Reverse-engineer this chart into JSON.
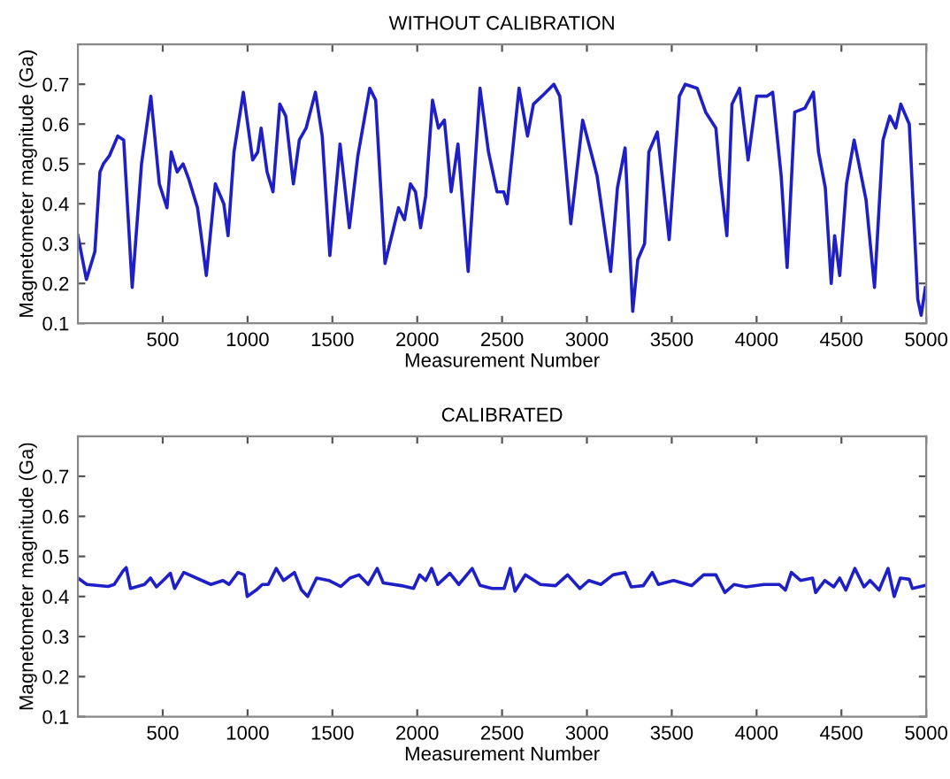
{
  "chart_data": [
    {
      "type": "line",
      "title": "WITHOUT CALIBRATION",
      "xlabel": "Measurement Number",
      "ylabel": "Magnetometer magnitude (Ga)",
      "xlim": [
        0,
        5000
      ],
      "ylim": [
        0.1,
        0.8
      ],
      "xticks": [
        500,
        1000,
        1500,
        2000,
        2500,
        3000,
        3500,
        4000,
        4500,
        5000
      ],
      "yticks": [
        0.1,
        0.2,
        0.3,
        0.4,
        0.5,
        0.6,
        0.7
      ],
      "grid": false,
      "marker": "none",
      "line_style": "solid",
      "series": [
        {
          "color": "#1f1fc8",
          "x": [
            0,
            50,
            100,
            130,
            150,
            185,
            235,
            270,
            320,
            375,
            430,
            480,
            525,
            550,
            585,
            620,
            655,
            705,
            757,
            810,
            860,
            885,
            920,
            975,
            1030,
            1060,
            1080,
            1115,
            1150,
            1190,
            1225,
            1270,
            1305,
            1345,
            1400,
            1440,
            1485,
            1545,
            1600,
            1650,
            1720,
            1755,
            1810,
            1890,
            1925,
            1960,
            1990,
            2020,
            2050,
            2090,
            2125,
            2160,
            2200,
            2240,
            2300,
            2370,
            2420,
            2470,
            2510,
            2530,
            2600,
            2650,
            2685,
            2735,
            2805,
            2840,
            2905,
            2975,
            3030,
            3060,
            3140,
            3180,
            3225,
            3270,
            3300,
            3340,
            3365,
            3415,
            3485,
            3545,
            3580,
            3650,
            3700,
            3760,
            3785,
            3825,
            3855,
            3900,
            3950,
            4000,
            4060,
            4095,
            4145,
            4180,
            4225,
            4285,
            4335,
            4365,
            4405,
            4440,
            4460,
            4490,
            4530,
            4575,
            4645,
            4695,
            4745,
            4785,
            4820,
            4850,
            4900,
            4950,
            4970,
            4995
          ],
          "values": [
            0.32,
            0.21,
            0.28,
            0.48,
            0.5,
            0.52,
            0.57,
            0.56,
            0.19,
            0.5,
            0.67,
            0.45,
            0.39,
            0.53,
            0.48,
            0.5,
            0.46,
            0.39,
            0.22,
            0.45,
            0.4,
            0.32,
            0.53,
            0.68,
            0.51,
            0.53,
            0.59,
            0.48,
            0.43,
            0.65,
            0.62,
            0.45,
            0.56,
            0.59,
            0.68,
            0.57,
            0.27,
            0.55,
            0.34,
            0.52,
            0.69,
            0.66,
            0.25,
            0.39,
            0.36,
            0.45,
            0.43,
            0.34,
            0.42,
            0.66,
            0.59,
            0.61,
            0.43,
            0.55,
            0.23,
            0.69,
            0.53,
            0.43,
            0.43,
            0.4,
            0.69,
            0.57,
            0.65,
            0.67,
            0.7,
            0.67,
            0.35,
            0.61,
            0.52,
            0.47,
            0.23,
            0.44,
            0.54,
            0.13,
            0.26,
            0.3,
            0.53,
            0.58,
            0.31,
            0.67,
            0.7,
            0.69,
            0.63,
            0.59,
            0.47,
            0.32,
            0.65,
            0.69,
            0.51,
            0.67,
            0.67,
            0.68,
            0.47,
            0.24,
            0.63,
            0.64,
            0.68,
            0.53,
            0.44,
            0.2,
            0.32,
            0.22,
            0.45,
            0.56,
            0.41,
            0.19,
            0.56,
            0.62,
            0.59,
            0.65,
            0.6,
            0.16,
            0.12,
            0.19
          ]
        }
      ]
    },
    {
      "type": "line",
      "title": "CALIBRATED",
      "xlabel": "Measurement Number",
      "ylabel": "Magnetometer magnitude (Ga)",
      "xlim": [
        0,
        5000
      ],
      "ylim": [
        0.1,
        0.8
      ],
      "xticks": [
        500,
        1000,
        1500,
        2000,
        2500,
        3000,
        3500,
        4000,
        4500,
        5000
      ],
      "yticks": [
        0.1,
        0.2,
        0.3,
        0.4,
        0.5,
        0.6,
        0.7
      ],
      "grid": false,
      "marker": "none",
      "line_style": "solid",
      "series": [
        {
          "color": "#1f1fc8",
          "x": [
            0,
            53,
            178,
            214,
            267,
            285,
            310,
            392,
            428,
            463,
            517,
            545,
            570,
            624,
            731,
            784,
            855,
            891,
            944,
            980,
            998,
            1051,
            1087,
            1122,
            1169,
            1212,
            1276,
            1318,
            1354,
            1407,
            1479,
            1550,
            1604,
            1657,
            1711,
            1764,
            1800,
            1907,
            1978,
            2014,
            2050,
            2085,
            2121,
            2192,
            2245,
            2324,
            2370,
            2441,
            2512,
            2548,
            2576,
            2637,
            2726,
            2815,
            2886,
            2958,
            3011,
            3082,
            3154,
            3225,
            3261,
            3332,
            3385,
            3421,
            3510,
            3617,
            3688,
            3760,
            3813,
            3867,
            3938,
            4045,
            4134,
            4170,
            4205,
            4259,
            4330,
            4348,
            4402,
            4455,
            4490,
            4526,
            4579,
            4633,
            4669,
            4722,
            4775,
            4811,
            4847,
            4900,
            4918,
            5000
          ],
          "values": [
            0.446,
            0.43,
            0.425,
            0.43,
            0.464,
            0.472,
            0.42,
            0.43,
            0.446,
            0.424,
            0.446,
            0.458,
            0.42,
            0.46,
            0.44,
            0.43,
            0.44,
            0.43,
            0.46,
            0.454,
            0.4,
            0.416,
            0.43,
            0.43,
            0.47,
            0.44,
            0.46,
            0.416,
            0.4,
            0.446,
            0.44,
            0.425,
            0.446,
            0.454,
            0.43,
            0.47,
            0.434,
            0.427,
            0.42,
            0.454,
            0.44,
            0.47,
            0.43,
            0.458,
            0.43,
            0.47,
            0.428,
            0.42,
            0.42,
            0.47,
            0.413,
            0.454,
            0.43,
            0.427,
            0.454,
            0.42,
            0.44,
            0.43,
            0.454,
            0.46,
            0.424,
            0.427,
            0.46,
            0.43,
            0.44,
            0.427,
            0.454,
            0.454,
            0.41,
            0.43,
            0.424,
            0.43,
            0.43,
            0.416,
            0.46,
            0.44,
            0.446,
            0.41,
            0.44,
            0.424,
            0.446,
            0.416,
            0.47,
            0.424,
            0.44,
            0.416,
            0.47,
            0.4,
            0.446,
            0.443,
            0.42,
            0.428
          ]
        }
      ]
    }
  ]
}
